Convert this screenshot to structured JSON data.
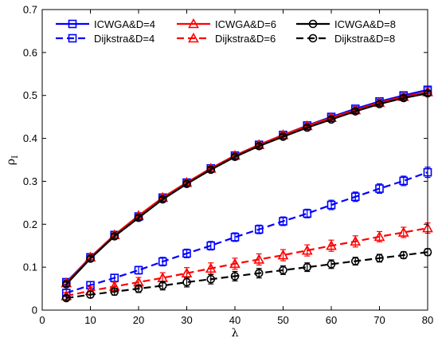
{
  "chart_data": {
    "type": "line",
    "xlabel": "λ",
    "ylabel": "ρ",
    "ylabel_sub": "I",
    "xlim": [
      0,
      80
    ],
    "ylim": [
      0,
      0.7
    ],
    "x_ticks": [
      0,
      10,
      20,
      30,
      40,
      50,
      60,
      70,
      80
    ],
    "y_ticks": [
      0,
      0.1,
      0.2,
      0.3,
      0.4,
      0.5,
      0.6,
      0.7
    ],
    "x_tick_labels": [
      "0",
      "10",
      "20",
      "30",
      "40",
      "50",
      "60",
      "70",
      "80"
    ],
    "y_tick_labels": [
      "0",
      "0.1",
      "0.2",
      "0.3",
      "0.4",
      "0.5",
      "0.6",
      "0.7"
    ],
    "grid": false,
    "legend_position": "top",
    "x": [
      5,
      10,
      15,
      20,
      25,
      30,
      35,
      40,
      45,
      50,
      55,
      60,
      65,
      70,
      75,
      80
    ],
    "series": [
      {
        "name": "ICWGA&D=4",
        "color": "#0000ff",
        "dash": "solid",
        "marker": "square",
        "values": [
          0.065,
          0.123,
          0.175,
          0.218,
          0.262,
          0.297,
          0.33,
          0.36,
          0.385,
          0.408,
          0.43,
          0.45,
          0.469,
          0.486,
          0.5,
          0.513
        ],
        "errors": [
          0.005,
          0.005,
          0.005,
          0.005,
          0.005,
          0.005,
          0.005,
          0.005,
          0.005,
          0.005,
          0.005,
          0.005,
          0.005,
          0.005,
          0.005,
          0.005
        ]
      },
      {
        "name": "Dijkstra&D=4",
        "color": "#0000ff",
        "dash": "dashed",
        "marker": "square",
        "values": [
          0.04,
          0.058,
          0.075,
          0.093,
          0.113,
          0.132,
          0.15,
          0.17,
          0.188,
          0.207,
          0.225,
          0.245,
          0.264,
          0.283,
          0.301,
          0.321
        ],
        "errors": [
          0.008,
          0.008,
          0.008,
          0.009,
          0.01,
          0.01,
          0.01,
          0.01,
          0.01,
          0.01,
          0.01,
          0.011,
          0.011,
          0.011,
          0.011,
          0.012
        ]
      },
      {
        "name": "ICWGA&D=6",
        "color": "#ff0000",
        "dash": "solid",
        "marker": "triangle",
        "values": [
          0.063,
          0.123,
          0.175,
          0.22,
          0.262,
          0.297,
          0.33,
          0.36,
          0.385,
          0.408,
          0.429,
          0.448,
          0.466,
          0.483,
          0.497,
          0.508
        ],
        "errors": [
          0.005,
          0.005,
          0.005,
          0.005,
          0.005,
          0.005,
          0.005,
          0.005,
          0.005,
          0.005,
          0.005,
          0.005,
          0.005,
          0.005,
          0.005,
          0.005
        ]
      },
      {
        "name": "Dijkstra&D=6",
        "color": "#ff0000",
        "dash": "dashed",
        "marker": "triangle",
        "values": [
          0.033,
          0.045,
          0.055,
          0.065,
          0.075,
          0.086,
          0.097,
          0.108,
          0.118,
          0.128,
          0.139,
          0.15,
          0.16,
          0.171,
          0.181,
          0.191
        ],
        "errors": [
          0.008,
          0.009,
          0.01,
          0.011,
          0.012,
          0.013,
          0.013,
          0.013,
          0.013,
          0.013,
          0.013,
          0.013,
          0.013,
          0.012,
          0.012,
          0.012
        ]
      },
      {
        "name": "ICWGA&D=8",
        "color": "#000000",
        "dash": "solid",
        "marker": "circle",
        "values": [
          0.06,
          0.12,
          0.172,
          0.215,
          0.258,
          0.294,
          0.327,
          0.357,
          0.382,
          0.404,
          0.425,
          0.444,
          0.463,
          0.48,
          0.494,
          0.505
        ],
        "errors": [
          0.005,
          0.005,
          0.005,
          0.005,
          0.005,
          0.005,
          0.005,
          0.005,
          0.005,
          0.005,
          0.005,
          0.005,
          0.005,
          0.005,
          0.005,
          0.005
        ]
      },
      {
        "name": "Dijkstra&D=8",
        "color": "#000000",
        "dash": "dashed",
        "marker": "circle",
        "values": [
          0.028,
          0.036,
          0.043,
          0.05,
          0.057,
          0.065,
          0.072,
          0.079,
          0.086,
          0.093,
          0.1,
          0.107,
          0.114,
          0.121,
          0.128,
          0.135
        ],
        "errors": [
          0.006,
          0.007,
          0.008,
          0.009,
          0.01,
          0.011,
          0.011,
          0.011,
          0.011,
          0.01,
          0.01,
          0.01,
          0.009,
          0.009,
          0.008,
          0.008
        ]
      }
    ]
  }
}
